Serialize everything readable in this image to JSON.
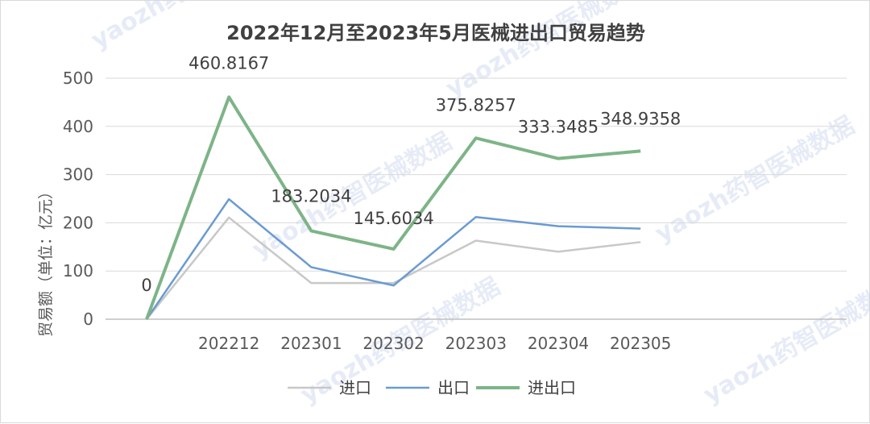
{
  "watermark": "yaozh药智医械数据",
  "chart_data": {
    "type": "line",
    "title": "2022年12月至2023年5月医械进出口贸易趋势",
    "ylabel": "贸易额（单位：亿元）",
    "xlabel": "",
    "ylim": [
      0,
      500
    ],
    "yticks": [
      0,
      100,
      200,
      300,
      400,
      500
    ],
    "grid": true,
    "legend_position": "bottom",
    "categories": [
      "",
      "202212",
      "202301",
      "202302",
      "202303",
      "202304",
      "202305"
    ],
    "series": [
      {
        "name": "进口",
        "color": "#c8c8c8",
        "values": [
          0,
          211,
          75,
          75,
          163,
          140,
          160
        ],
        "show_labels": false
      },
      {
        "name": "出口",
        "color": "#6a9bd1",
        "values": [
          0,
          249,
          108,
          70,
          212,
          193,
          188
        ],
        "show_labels": false
      },
      {
        "name": "进出口",
        "color": "#7db487",
        "values": [
          0,
          460.8167,
          183.2034,
          145.6034,
          375.8257,
          333.3485,
          348.9358
        ],
        "show_labels": true,
        "labels": [
          "0",
          "460.8167",
          "183.2034",
          "145.6034",
          "375.8257",
          "333.3485",
          "348.9358"
        ]
      }
    ]
  }
}
